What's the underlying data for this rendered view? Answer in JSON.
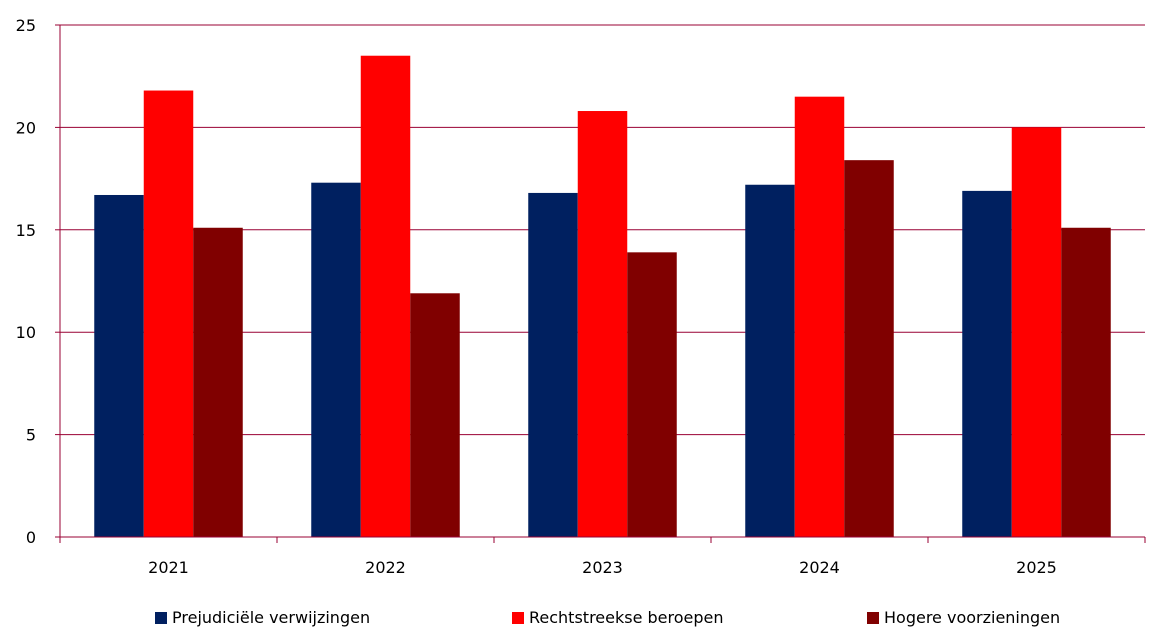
{
  "chart_data": {
    "type": "bar",
    "title": "",
    "xlabel": "",
    "ylabel": "",
    "categories": [
      "2021",
      "2022",
      "2023",
      "2024",
      "2025"
    ],
    "series": [
      {
        "name": "Prejudiciële verwijzingen",
        "color": "#002060",
        "values": [
          16.7,
          17.3,
          16.8,
          17.2,
          16.9
        ]
      },
      {
        "name": "Rechtstreekse beroepen",
        "color": "#ff0000",
        "values": [
          21.8,
          23.5,
          20.8,
          21.5,
          20.0
        ]
      },
      {
        "name": "Hogere voorzieningen",
        "color": "#800000",
        "values": [
          15.1,
          11.9,
          13.9,
          18.4,
          15.1
        ]
      }
    ],
    "ylim": [
      0,
      25
    ],
    "yticks": [
      0,
      5,
      10,
      15,
      20,
      25
    ],
    "grid": true,
    "grid_color": "#990033",
    "legend_position": "bottom"
  }
}
